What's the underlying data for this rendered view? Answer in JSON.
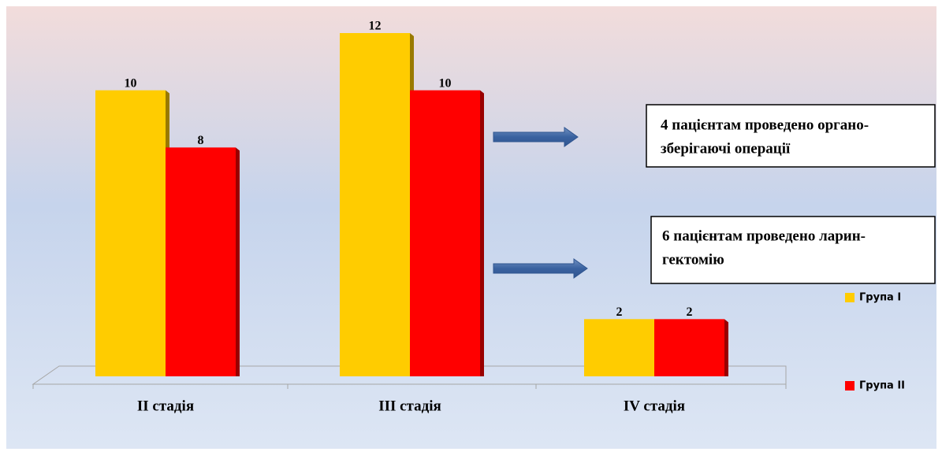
{
  "chart_data": {
    "type": "bar",
    "categories": [
      "II стадія",
      "III стадія",
      "IV стадія"
    ],
    "series": [
      {
        "name": "Група I",
        "color": "#ffcc00",
        "values": [
          10,
          12,
          2
        ]
      },
      {
        "name": "Група II",
        "color": "#ff0000",
        "values": [
          8,
          10,
          2
        ]
      }
    ],
    "ylim": [
      0,
      12
    ],
    "annotations": [
      [
        "4 пацієнтам проведено органо-",
        "зберігаючі операції"
      ],
      [
        "6 пацієнтам проведено ларин-",
        "гектомію"
      ]
    ],
    "legend": "right"
  }
}
